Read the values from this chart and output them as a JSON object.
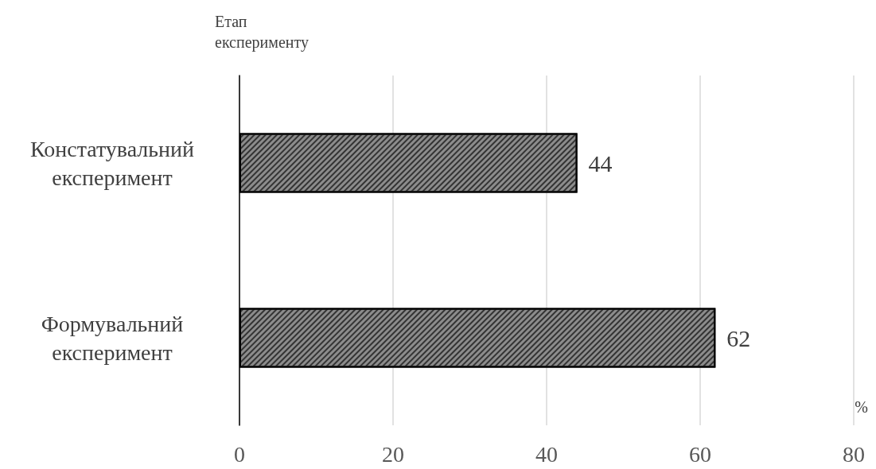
{
  "chart_data": {
    "type": "bar",
    "orientation": "horizontal",
    "ylabel": "Етап експерименту",
    "xlabel": "%",
    "categories": [
      "Констатувальний експеримент",
      "Формувальний експеримент"
    ],
    "values": [
      44,
      62
    ],
    "color": "#8c8c8c",
    "xlim": [
      0,
      80
    ],
    "xticks": [
      0,
      20,
      40,
      60,
      80
    ],
    "grid": "x",
    "data_labels": true
  }
}
